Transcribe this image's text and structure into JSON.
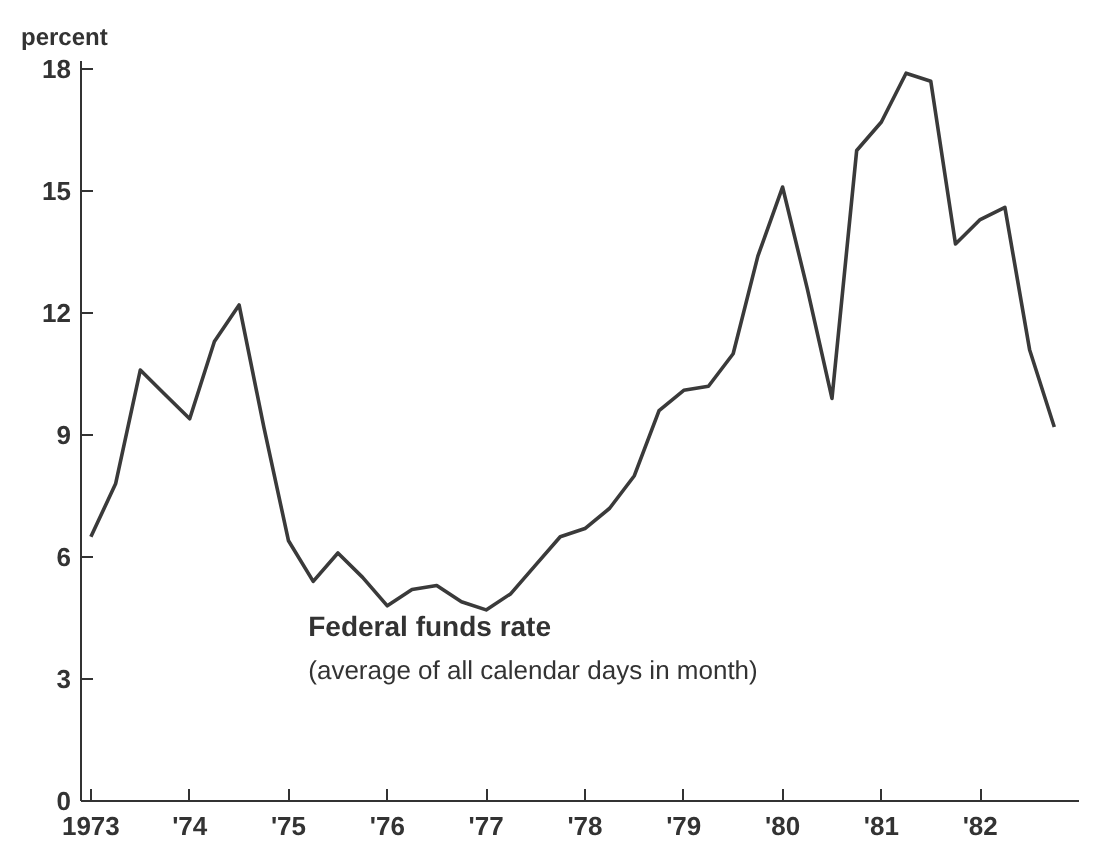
{
  "chart_data": {
    "type": "line",
    "ylabel": "percent",
    "annotations": [
      "Federal funds rate",
      "(average of all calendar days in month)"
    ],
    "x": [
      1973.0,
      1973.25,
      1973.5,
      1973.75,
      1974.0,
      1974.25,
      1974.5,
      1974.75,
      1975.0,
      1975.25,
      1975.5,
      1975.75,
      1976.0,
      1976.25,
      1976.5,
      1976.75,
      1977.0,
      1977.25,
      1977.5,
      1977.75,
      1978.0,
      1978.25,
      1978.5,
      1978.75,
      1979.0,
      1979.25,
      1979.5,
      1979.75,
      1980.0,
      1980.25,
      1980.5,
      1980.75,
      1981.0,
      1981.25,
      1981.5,
      1981.75,
      1982.0,
      1982.25,
      1982.5,
      1982.75
    ],
    "series": [
      {
        "color": "#3a3a3a",
        "values": [
          6.5,
          7.8,
          10.6,
          10.0,
          9.4,
          11.3,
          12.2,
          9.2,
          6.4,
          5.4,
          6.1,
          5.5,
          4.8,
          5.2,
          5.3,
          4.9,
          4.7,
          5.1,
          5.8,
          6.5,
          6.7,
          7.2,
          8.0,
          9.6,
          10.1,
          10.2,
          11.0,
          13.4,
          15.1,
          12.6,
          9.9,
          16.0,
          16.7,
          17.9,
          17.7,
          13.7,
          14.3,
          14.6,
          11.1,
          9.2
        ]
      }
    ],
    "xlim": [
      1972.9,
      1983.0
    ],
    "ylim": [
      0,
      18.2
    ],
    "xticks": [
      1973,
      {
        "value": 1974,
        "label": "'74"
      },
      {
        "value": 1975,
        "label": "'75"
      },
      {
        "value": 1976,
        "label": "'76"
      },
      {
        "value": 1977,
        "label": "'77"
      },
      {
        "value": 1978,
        "label": "'78"
      },
      {
        "value": 1979,
        "label": "'79"
      },
      {
        "value": 1980,
        "label": "'80"
      },
      {
        "value": 1981,
        "label": "'81"
      },
      {
        "value": 1982,
        "label": "'82"
      }
    ],
    "yticks": [
      0,
      3,
      6,
      9,
      12,
      15,
      18
    ],
    "grid": false,
    "marker": "none",
    "line_style": "solid"
  }
}
